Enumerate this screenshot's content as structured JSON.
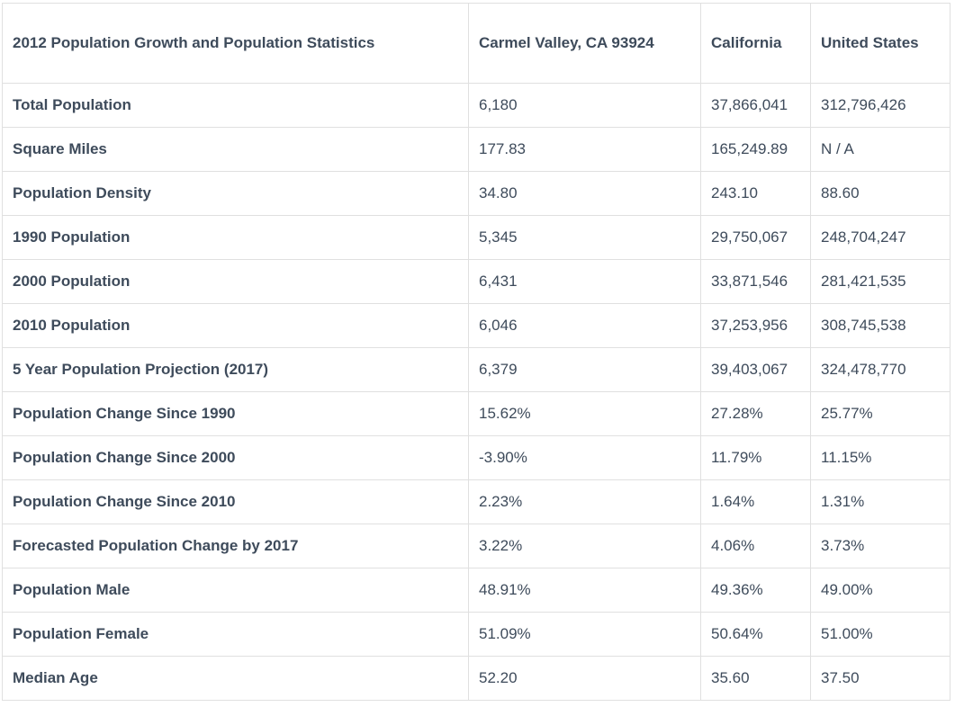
{
  "colors": {
    "text": "#3e4b5b",
    "border": "#e0e0e0",
    "background": "#ffffff"
  },
  "chart_data": {
    "type": "table",
    "title": "2012 Population Growth and Population Statistics",
    "columns": [
      "2012 Population Growth and Population Statistics",
      "Carmel Valley, CA 93924",
      "California",
      "United States"
    ],
    "rows": [
      [
        "Total Population",
        "6,180",
        "37,866,041",
        "312,796,426"
      ],
      [
        "Square Miles",
        "177.83",
        "165,249.89",
        "N / A"
      ],
      [
        "Population Density",
        "34.80",
        "243.10",
        "88.60"
      ],
      [
        "1990 Population",
        "5,345",
        "29,750,067",
        "248,704,247"
      ],
      [
        "2000 Population",
        "6,431",
        "33,871,546",
        "281,421,535"
      ],
      [
        "2010 Population",
        "6,046",
        "37,253,956",
        "308,745,538"
      ],
      [
        "5 Year Population Projection (2017)",
        "6,379",
        "39,403,067",
        "324,478,770"
      ],
      [
        "Population Change Since 1990",
        "15.62%",
        "27.28%",
        "25.77%"
      ],
      [
        "Population Change Since 2000",
        "-3.90%",
        "11.79%",
        "11.15%"
      ],
      [
        "Population Change Since 2010",
        "2.23%",
        "1.64%",
        "1.31%"
      ],
      [
        "Forecasted Population Change by 2017",
        "3.22%",
        "4.06%",
        "3.73%"
      ],
      [
        "Population Male",
        "48.91%",
        "49.36%",
        "49.00%"
      ],
      [
        "Population Female",
        "51.09%",
        "50.64%",
        "51.00%"
      ],
      [
        "Median Age",
        "52.20",
        "35.60",
        "37.50"
      ]
    ]
  }
}
